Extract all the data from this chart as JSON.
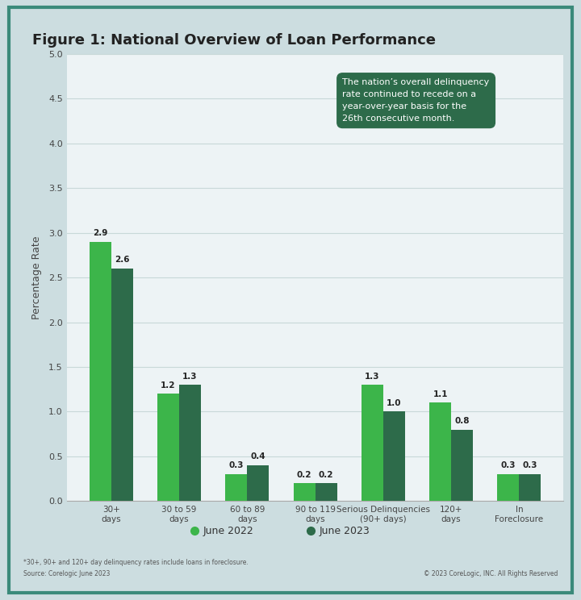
{
  "title": "Figure 1: National Overview of Loan Performance",
  "categories": [
    "30+\ndays",
    "30 to 59\ndays",
    "60 to 89\ndays",
    "90 to 119\ndays",
    "Serious Delinquencies\n(90+ days)",
    "120+\ndays",
    "In\nForeclosure"
  ],
  "june2022": [
    2.9,
    1.2,
    0.3,
    0.2,
    1.3,
    1.1,
    0.3
  ],
  "june2023": [
    2.6,
    1.3,
    0.4,
    0.2,
    1.0,
    0.8,
    0.3
  ],
  "color_2022": "#3cb54a",
  "color_2023": "#2d6b4a",
  "ylabel": "Percentage Rate",
  "ylim": [
    0,
    5.0
  ],
  "yticks": [
    0.0,
    0.5,
    1.0,
    1.5,
    2.0,
    2.5,
    3.0,
    3.5,
    4.0,
    4.5,
    5.0
  ],
  "annotation_box_text": "The nation’s overall delinquency\nrate continued to recede on a\nyear-over-year basis for the\n26th consecutive month.",
  "annotation_box_color": "#2d6b4a",
  "legend_labels": [
    "June 2022",
    "June 2023"
  ],
  "footnote1": "*30+, 90+ and 120+ day delinquency rates include loans in foreclosure.",
  "footnote2": "Source: Corelogic June 2023",
  "footnote3": "© 2023 CoreLogic, INC. All Rights Reserved",
  "background_outer": "#ccdde0",
  "background_chart": "#edf3f5",
  "border_color": "#3a8a7a",
  "title_fontsize": 13,
  "bar_width": 0.32,
  "value_label_fontsize": 7.5
}
